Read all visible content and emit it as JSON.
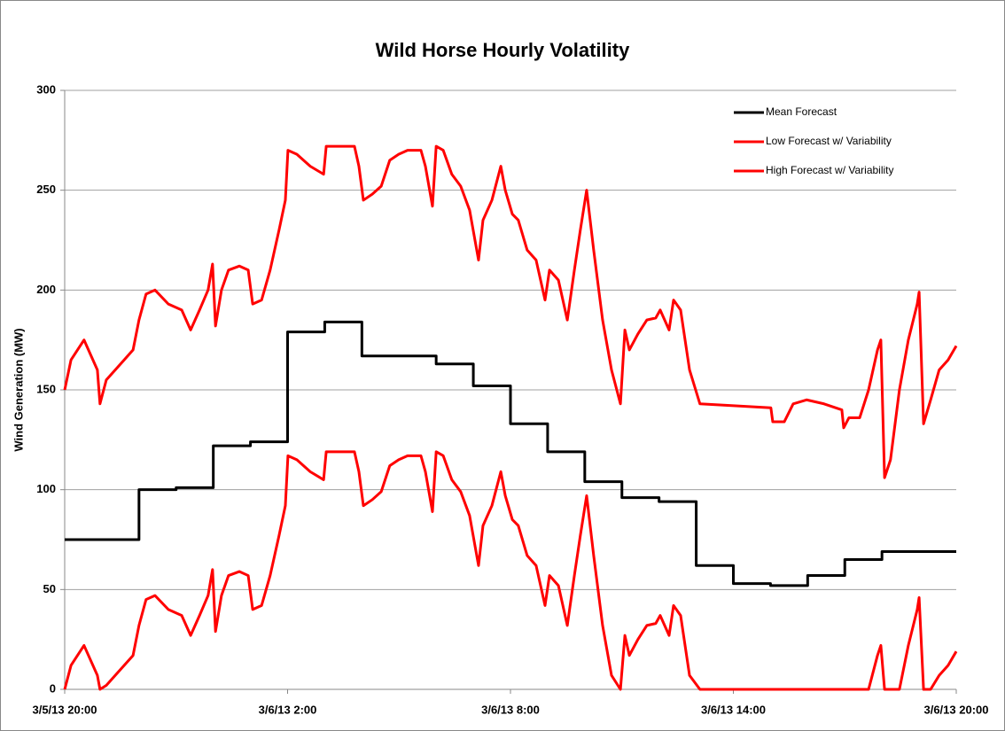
{
  "chart_data": {
    "type": "line",
    "title": "Wild Horse Hourly Volatility",
    "y_label": "Wind Generation (MW)",
    "xlim": [
      0,
      24
    ],
    "xticks": [
      {
        "value": 0,
        "label": "3/5/13 20:00"
      },
      {
        "value": 6,
        "label": "3/6/13 2:00"
      },
      {
        "value": 12,
        "label": "3/6/13 8:00"
      },
      {
        "value": 18,
        "label": "3/6/13 14:00"
      },
      {
        "value": 24,
        "label": "3/6/13 20:00"
      }
    ],
    "ylim": [
      0,
      300
    ],
    "yticks": [
      0,
      50,
      100,
      150,
      200,
      250,
      300
    ],
    "grid": true,
    "legend": "top-right",
    "series": [
      {
        "name": "Mean Forecast",
        "color": "#000000",
        "step": true,
        "x": [
          0,
          1,
          2,
          3,
          4,
          5,
          6,
          7,
          8,
          9,
          10,
          11,
          12,
          13,
          14,
          15,
          16,
          17,
          18,
          19,
          20,
          21,
          22,
          23,
          24
        ],
        "values": [
          75,
          75,
          100,
          101,
          122,
          124,
          179,
          184,
          167,
          167,
          163,
          152,
          133,
          119,
          104,
          96,
          94,
          62,
          53,
          52,
          57,
          65,
          69,
          69,
          69
        ]
      },
      {
        "name": "Low Forecast w/ Variability",
        "color": "#ff0000",
        "step": false,
        "x": [
          0,
          0.17,
          0.52,
          0.88,
          0.95,
          1.12,
          1.6,
          1.84,
          2,
          2.19,
          2.43,
          2.79,
          3.15,
          3.39,
          3.63,
          3.86,
          3.98,
          4.06,
          4.22,
          4.41,
          4.7,
          4.94,
          5.06,
          5.3,
          5.53,
          5.77,
          5.94,
          6.01,
          6.25,
          6.61,
          6.97,
          7.04,
          7.32,
          7.8,
          7.92,
          8.04,
          8.28,
          8.52,
          8.75,
          8.99,
          9.23,
          9.59,
          9.71,
          9.9,
          10,
          10.19,
          10.42,
          10.66,
          10.9,
          11.14,
          11.26,
          11.5,
          11.74,
          11.86,
          12.05,
          12.21,
          12.45,
          12.69,
          12.93,
          13.05,
          13.29,
          13.53,
          13.72,
          13.88,
          14.05,
          14.24,
          14.48,
          14.72,
          14.96,
          15.08,
          15.2,
          15.43,
          15.67,
          15.91,
          16.03,
          16.27,
          16.39,
          16.58,
          16.82,
          17.1,
          18.06,
          19.01,
          19.06,
          19.37,
          19.61,
          19.97,
          20.44,
          20.92,
          20.97,
          21.11,
          21.4,
          21.64,
          21.88,
          21.97,
          22.07,
          22.23,
          22.47,
          22.71,
          22.95,
          23,
          23.12,
          23.31,
          23.54,
          23.78,
          24
        ],
        "values": [
          0,
          12,
          22,
          7,
          0,
          2,
          12,
          17,
          32,
          45,
          47,
          40,
          37,
          27,
          37,
          47,
          60,
          29,
          47,
          57,
          59,
          57,
          40,
          42,
          57,
          77,
          92,
          117,
          115,
          109,
          105,
          119,
          119,
          119,
          109,
          92,
          95,
          99,
          112,
          115,
          117,
          117,
          109,
          89,
          119,
          117,
          105,
          99,
          87,
          62,
          82,
          92,
          109,
          97,
          85,
          82,
          67,
          62,
          42,
          57,
          52,
          32,
          57,
          77,
          97,
          67,
          32,
          7,
          0,
          27,
          17,
          25,
          32,
          33,
          37,
          27,
          42,
          37,
          7,
          0,
          0,
          0,
          0,
          0,
          0,
          0,
          0,
          0,
          0,
          0,
          0,
          0,
          17,
          22,
          0,
          0,
          0,
          22,
          40,
          46,
          0,
          0,
          7,
          12,
          19
        ]
      },
      {
        "name": "High Forecast w/ Variability",
        "color": "#ff0000",
        "step": false,
        "x": [
          0,
          0.17,
          0.52,
          0.88,
          0.95,
          1.12,
          1.6,
          1.84,
          2,
          2.19,
          2.43,
          2.79,
          3.15,
          3.39,
          3.63,
          3.86,
          3.98,
          4.06,
          4.22,
          4.41,
          4.7,
          4.94,
          5.06,
          5.3,
          5.53,
          5.77,
          5.94,
          6.01,
          6.25,
          6.61,
          6.97,
          7.04,
          7.32,
          7.8,
          7.92,
          8.04,
          8.28,
          8.52,
          8.75,
          8.99,
          9.23,
          9.59,
          9.71,
          9.9,
          10,
          10.19,
          10.42,
          10.66,
          10.9,
          11.14,
          11.26,
          11.5,
          11.74,
          11.86,
          12.05,
          12.21,
          12.45,
          12.69,
          12.93,
          13.05,
          13.29,
          13.53,
          13.72,
          13.88,
          14.05,
          14.24,
          14.48,
          14.72,
          14.96,
          15.08,
          15.2,
          15.43,
          15.67,
          15.91,
          16.03,
          16.27,
          16.39,
          16.58,
          16.82,
          17.1,
          18.06,
          19.01,
          19.06,
          19.37,
          19.61,
          19.97,
          20.44,
          20.92,
          20.97,
          21.11,
          21.4,
          21.64,
          21.88,
          21.97,
          22.07,
          22.23,
          22.47,
          22.71,
          22.95,
          23,
          23.12,
          23.31,
          23.54,
          23.78,
          24
        ],
        "values": [
          150,
          165,
          175,
          160,
          143,
          155,
          165,
          170,
          185,
          198,
          200,
          193,
          190,
          180,
          190,
          200,
          213,
          182,
          200,
          210,
          212,
          210,
          193,
          195,
          210,
          230,
          245,
          270,
          268,
          262,
          258,
          272,
          272,
          272,
          262,
          245,
          248,
          252,
          265,
          268,
          270,
          270,
          262,
          242,
          272,
          270,
          258,
          252,
          240,
          215,
          235,
          245,
          262,
          250,
          238,
          235,
          220,
          215,
          195,
          210,
          205,
          185,
          210,
          230,
          250,
          220,
          185,
          160,
          143,
          180,
          170,
          178,
          185,
          186,
          190,
          180,
          195,
          190,
          160,
          143,
          142,
          141,
          134,
          134,
          143,
          145,
          143,
          140,
          131,
          136,
          136,
          150,
          170,
          175,
          106,
          115,
          150,
          175,
          193,
          199,
          133,
          145,
          160,
          165,
          172
        ]
      }
    ]
  }
}
